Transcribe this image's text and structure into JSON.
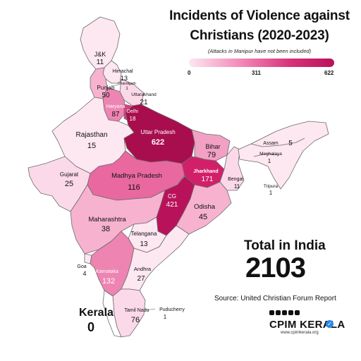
{
  "title_line1": "Incidents of Violence against",
  "title_line2": "Christians (2020-2023)",
  "subtitle": "(Attacks in Manipur have not been included)",
  "legend": {
    "min": "0",
    "mid": "311",
    "max": "622",
    "colors": [
      "#fde7f1",
      "#f28bb8",
      "#d8307a",
      "#b8125a"
    ]
  },
  "regions": {
    "jk": {
      "name": "J&K",
      "value": "11"
    },
    "himachal": {
      "name": "Himachal",
      "value": "13"
    },
    "chandigarh": {
      "name": "Chandigarh",
      "value": "1"
    },
    "punjab": {
      "name": "Punjab",
      "value": "50"
    },
    "uttarakhand": {
      "name": "Uttarakhand",
      "value": "21"
    },
    "haryana": {
      "name": "Haryana",
      "value": "87"
    },
    "delhi": {
      "name": "Delhi",
      "value": "18"
    },
    "rajasthan": {
      "name": "Rajasthan",
      "value": "15"
    },
    "up": {
      "name": "Uttar Pradesh",
      "value": "622"
    },
    "bihar": {
      "name": "Bihar",
      "value": "79"
    },
    "assam": {
      "name": "Assam",
      "value": "5"
    },
    "meghalaya": {
      "name": "Meghalaya",
      "value": "1"
    },
    "gujarat": {
      "name": "Gujarat",
      "value": "25"
    },
    "mp": {
      "name": "Madhya Pradesh",
      "value": "116"
    },
    "jharkhand": {
      "name": "Jharkhand",
      "value": "171"
    },
    "bengal": {
      "name": "Bengal",
      "value": "11"
    },
    "tripura": {
      "name": "Tripura",
      "value": "1"
    },
    "cg": {
      "name": "CG",
      "value": "421"
    },
    "odisha": {
      "name": "Odisha",
      "value": "45"
    },
    "maharashtra": {
      "name": "Maharashtra",
      "value": "38"
    },
    "telangana": {
      "name": "Telangana",
      "value": "13"
    },
    "goa": {
      "name": "Goa",
      "value": "4"
    },
    "karnataka": {
      "name": "Karnataka",
      "value": "132"
    },
    "andhra": {
      "name": "Andhra",
      "value": "27"
    },
    "tamilnadu": {
      "name": "Tamil Nadu",
      "value": "76"
    },
    "puducherry": {
      "name": "Puducherry",
      "value": "1"
    }
  },
  "kerala": {
    "name": "Kerala",
    "value": "0"
  },
  "total": {
    "label": "Total in India",
    "value": "2103"
  },
  "source": "Source: United Christian Forum Report",
  "brand": {
    "name": "CPIM KERALA",
    "url": "www.cpimkerala.org"
  }
}
